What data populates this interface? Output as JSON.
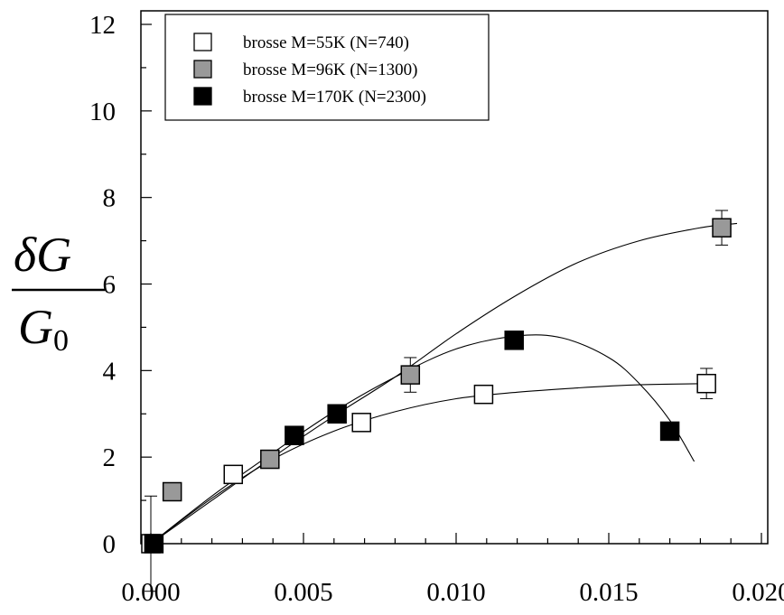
{
  "chart_data": {
    "type": "scatter",
    "title": "",
    "xlabel": "",
    "ylabel": {
      "numerator": "δG",
      "denominator_symbol": "G",
      "denominator_subscript": "0"
    },
    "xlim": [
      0.0,
      0.02
    ],
    "ylim": [
      0,
      12
    ],
    "x_ticks": [
      0.0,
      0.005,
      0.01,
      0.015,
      0.02
    ],
    "x_tick_labels": [
      "0.000",
      "0.005",
      "0.010",
      "0.015",
      "0.020"
    ],
    "y_ticks": [
      0,
      2,
      4,
      6,
      8,
      10,
      12
    ],
    "y_tick_labels": [
      "0",
      "2",
      "4",
      "6",
      "8",
      "10",
      "12"
    ],
    "grid": false,
    "legend_position": "top-left",
    "series": [
      {
        "name": "brosse M=55K (N=740)",
        "marker_fill": "#ffffff",
        "points": [
          {
            "x": 0.0,
            "y": 0.0,
            "err": 1.1
          },
          {
            "x": 0.0027,
            "y": 1.6,
            "err": 0.2
          },
          {
            "x": 0.0069,
            "y": 2.8,
            "err": 0.2
          },
          {
            "x": 0.0109,
            "y": 3.45,
            "err": 0.2
          },
          {
            "x": 0.0182,
            "y": 3.7,
            "err": 0.35
          }
        ],
        "fit": [
          {
            "x": 0.0,
            "y": 0.0
          },
          {
            "x": 0.002,
            "y": 1.05
          },
          {
            "x": 0.004,
            "y": 1.95
          },
          {
            "x": 0.006,
            "y": 2.6
          },
          {
            "x": 0.008,
            "y": 3.05
          },
          {
            "x": 0.01,
            "y": 3.35
          },
          {
            "x": 0.012,
            "y": 3.5
          },
          {
            "x": 0.014,
            "y": 3.6
          },
          {
            "x": 0.016,
            "y": 3.67
          },
          {
            "x": 0.0185,
            "y": 3.7
          }
        ]
      },
      {
        "name": "brosse M=96K (N=1300)",
        "marker_fill": "#999999",
        "points": [
          {
            "x": 0.0007,
            "y": 1.2,
            "err": 0.2
          },
          {
            "x": 0.0039,
            "y": 1.95,
            "err": 0.15
          },
          {
            "x": 0.0085,
            "y": 3.9,
            "err": 0.4
          },
          {
            "x": 0.0187,
            "y": 7.3,
            "err": 0.4
          }
        ],
        "fit": [
          {
            "x": 0.0,
            "y": 0.0
          },
          {
            "x": 0.002,
            "y": 1.0
          },
          {
            "x": 0.004,
            "y": 2.0
          },
          {
            "x": 0.006,
            "y": 2.95
          },
          {
            "x": 0.008,
            "y": 3.85
          },
          {
            "x": 0.01,
            "y": 4.85
          },
          {
            "x": 0.012,
            "y": 5.75
          },
          {
            "x": 0.014,
            "y": 6.5
          },
          {
            "x": 0.016,
            "y": 7.0
          },
          {
            "x": 0.018,
            "y": 7.3
          },
          {
            "x": 0.0192,
            "y": 7.4
          }
        ]
      },
      {
        "name": "brosse M=170K (N=2300)",
        "marker_fill": "#000000",
        "points": [
          {
            "x": 0.0001,
            "y": 0.0,
            "err": 0.0
          },
          {
            "x": 0.0047,
            "y": 2.5,
            "err": 0.2
          },
          {
            "x": 0.0061,
            "y": 3.0,
            "err": 0.2
          },
          {
            "x": 0.0119,
            "y": 4.7,
            "err": 0.2
          },
          {
            "x": 0.017,
            "y": 2.6,
            "err": 0.2
          }
        ],
        "fit": [
          {
            "x": 0.0,
            "y": 0.0
          },
          {
            "x": 0.002,
            "y": 1.1
          },
          {
            "x": 0.004,
            "y": 2.1
          },
          {
            "x": 0.006,
            "y": 3.05
          },
          {
            "x": 0.008,
            "y": 3.85
          },
          {
            "x": 0.01,
            "y": 4.5
          },
          {
            "x": 0.012,
            "y": 4.8
          },
          {
            "x": 0.0135,
            "y": 4.75
          },
          {
            "x": 0.015,
            "y": 4.3
          },
          {
            "x": 0.016,
            "y": 3.7
          },
          {
            "x": 0.017,
            "y": 2.85
          },
          {
            "x": 0.0178,
            "y": 1.9
          }
        ]
      }
    ]
  }
}
